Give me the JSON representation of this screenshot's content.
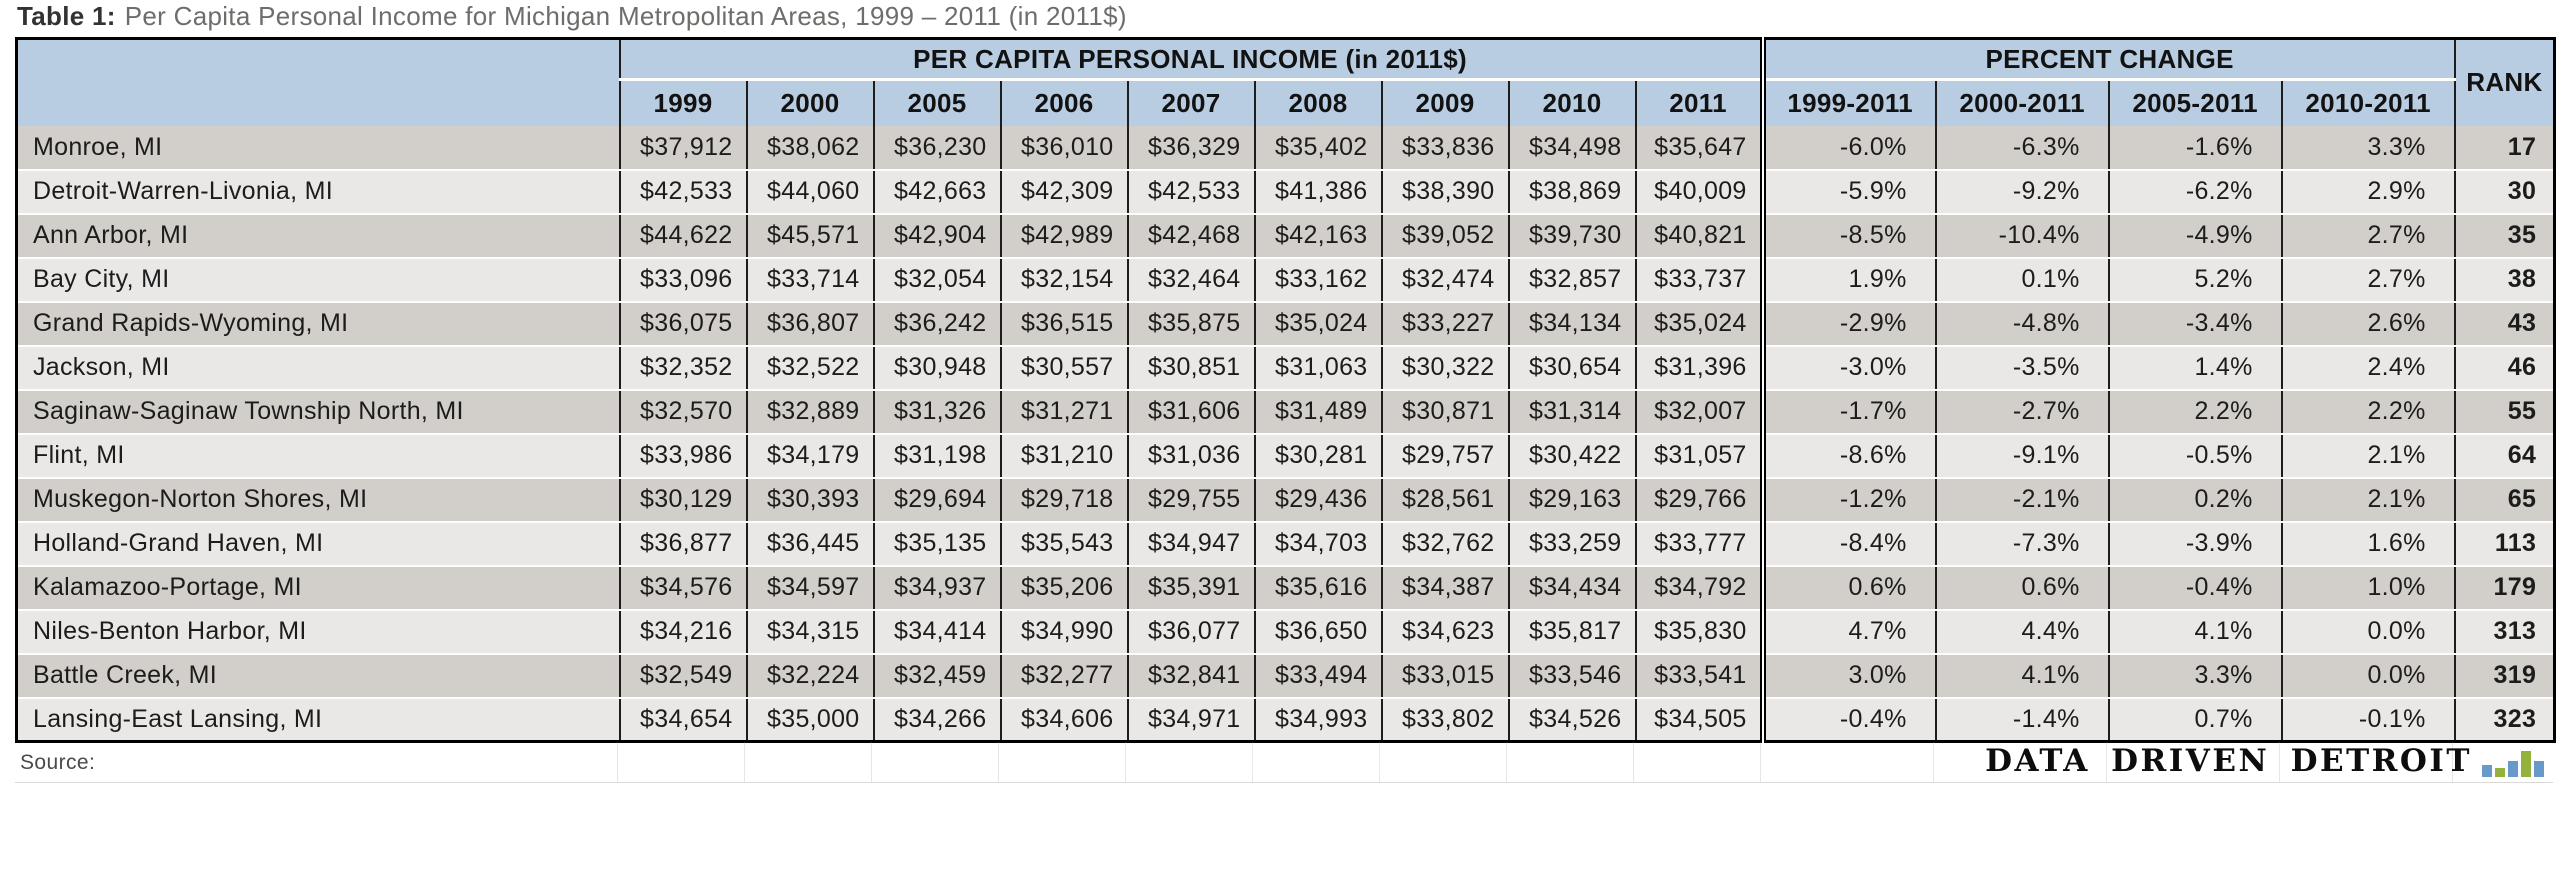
{
  "title": {
    "prefix": "Table 1:",
    "text": "Per Capita Personal Income for Michigan Metropolitan Areas, 1999 – 2011 (in 2011$)"
  },
  "table": {
    "sections": {
      "income": "PER CAPITA PERSONAL INCOME (in 2011$)",
      "change": "PERCENT CHANGE",
      "rank": "RANK"
    },
    "year_columns": [
      "1999",
      "2000",
      "2005",
      "2006",
      "2007",
      "2008",
      "2009",
      "2010",
      "2011"
    ],
    "change_columns": [
      "1999-2011",
      "2000-2011",
      "2005-2011",
      "2010-2011"
    ],
    "rows": [
      {
        "area": "Monroe, MI",
        "income": [
          "$37,912",
          "$38,062",
          "$36,230",
          "$36,010",
          "$36,329",
          "$35,402",
          "$33,836",
          "$34,498",
          "$35,647"
        ],
        "change": [
          "-6.0%",
          "-6.3%",
          "-1.6%",
          "3.3%"
        ],
        "rank": "17"
      },
      {
        "area": "Detroit-Warren-Livonia, MI",
        "income": [
          "$42,533",
          "$44,060",
          "$42,663",
          "$42,309",
          "$42,533",
          "$41,386",
          "$38,390",
          "$38,869",
          "$40,009"
        ],
        "change": [
          "-5.9%",
          "-9.2%",
          "-6.2%",
          "2.9%"
        ],
        "rank": "30"
      },
      {
        "area": "Ann Arbor, MI",
        "income": [
          "$44,622",
          "$45,571",
          "$42,904",
          "$42,989",
          "$42,468",
          "$42,163",
          "$39,052",
          "$39,730",
          "$40,821"
        ],
        "change": [
          "-8.5%",
          "-10.4%",
          "-4.9%",
          "2.7%"
        ],
        "rank": "35"
      },
      {
        "area": "Bay City, MI",
        "income": [
          "$33,096",
          "$33,714",
          "$32,054",
          "$32,154",
          "$32,464",
          "$33,162",
          "$32,474",
          "$32,857",
          "$33,737"
        ],
        "change": [
          "1.9%",
          "0.1%",
          "5.2%",
          "2.7%"
        ],
        "rank": "38"
      },
      {
        "area": "Grand Rapids-Wyoming, MI",
        "income": [
          "$36,075",
          "$36,807",
          "$36,242",
          "$36,515",
          "$35,875",
          "$35,024",
          "$33,227",
          "$34,134",
          "$35,024"
        ],
        "change": [
          "-2.9%",
          "-4.8%",
          "-3.4%",
          "2.6%"
        ],
        "rank": "43"
      },
      {
        "area": "Jackson, MI",
        "income": [
          "$32,352",
          "$32,522",
          "$30,948",
          "$30,557",
          "$30,851",
          "$31,063",
          "$30,322",
          "$30,654",
          "$31,396"
        ],
        "change": [
          "-3.0%",
          "-3.5%",
          "1.4%",
          "2.4%"
        ],
        "rank": "46"
      },
      {
        "area": "Saginaw-Saginaw Township North, MI",
        "income": [
          "$32,570",
          "$32,889",
          "$31,326",
          "$31,271",
          "$31,606",
          "$31,489",
          "$30,871",
          "$31,314",
          "$32,007"
        ],
        "change": [
          "-1.7%",
          "-2.7%",
          "2.2%",
          "2.2%"
        ],
        "rank": "55"
      },
      {
        "area": "Flint, MI",
        "income": [
          "$33,986",
          "$34,179",
          "$31,198",
          "$31,210",
          "$31,036",
          "$30,281",
          "$29,757",
          "$30,422",
          "$31,057"
        ],
        "change": [
          "-8.6%",
          "-9.1%",
          "-0.5%",
          "2.1%"
        ],
        "rank": "64"
      },
      {
        "area": "Muskegon-Norton Shores, MI",
        "income": [
          "$30,129",
          "$30,393",
          "$29,694",
          "$29,718",
          "$29,755",
          "$29,436",
          "$28,561",
          "$29,163",
          "$29,766"
        ],
        "change": [
          "-1.2%",
          "-2.1%",
          "0.2%",
          "2.1%"
        ],
        "rank": "65"
      },
      {
        "area": "Holland-Grand Haven, MI",
        "income": [
          "$36,877",
          "$36,445",
          "$35,135",
          "$35,543",
          "$34,947",
          "$34,703",
          "$32,762",
          "$33,259",
          "$33,777"
        ],
        "change": [
          "-8.4%",
          "-7.3%",
          "-3.9%",
          "1.6%"
        ],
        "rank": "113"
      },
      {
        "area": "Kalamazoo-Portage, MI",
        "income": [
          "$34,576",
          "$34,597",
          "$34,937",
          "$35,206",
          "$35,391",
          "$35,616",
          "$34,387",
          "$34,434",
          "$34,792"
        ],
        "change": [
          "0.6%",
          "0.6%",
          "-0.4%",
          "1.0%"
        ],
        "rank": "179"
      },
      {
        "area": "Niles-Benton Harbor, MI",
        "income": [
          "$34,216",
          "$34,315",
          "$34,414",
          "$34,990",
          "$36,077",
          "$36,650",
          "$34,623",
          "$35,817",
          "$35,830"
        ],
        "change": [
          "4.7%",
          "4.4%",
          "4.1%",
          "0.0%"
        ],
        "rank": "313"
      },
      {
        "area": "Battle Creek, MI",
        "income": [
          "$32,549",
          "$32,224",
          "$32,459",
          "$32,277",
          "$32,841",
          "$33,494",
          "$33,015",
          "$33,546",
          "$33,541"
        ],
        "change": [
          "3.0%",
          "4.1%",
          "3.3%",
          "0.0%"
        ],
        "rank": "319"
      },
      {
        "area": "Lansing-East Lansing, MI",
        "income": [
          "$34,654",
          "$35,000",
          "$34,266",
          "$34,606",
          "$34,971",
          "$34,993",
          "$33,802",
          "$34,526",
          "$34,505"
        ],
        "change": [
          "-0.4%",
          "-1.4%",
          "0.7%",
          "-0.1%"
        ],
        "rank": "323"
      }
    ]
  },
  "footer": {
    "source_label": "Source:",
    "logo": {
      "text": "DATA DRIVEN DETROIT",
      "bars": [
        {
          "color": "#6899cb",
          "h": 12
        },
        {
          "color": "#92b23c",
          "h": 9
        },
        {
          "color": "#6899cb",
          "h": 16
        },
        {
          "color": "#92b23c",
          "h": 26
        },
        {
          "color": "#6899cb",
          "h": 16
        }
      ]
    }
  },
  "colors": {
    "header_bg": "#b9cde2",
    "row_dark": "#d2cec9",
    "row_light": "#eae8e6",
    "logo_blue": "#6899cb",
    "logo_green": "#92b23c"
  }
}
